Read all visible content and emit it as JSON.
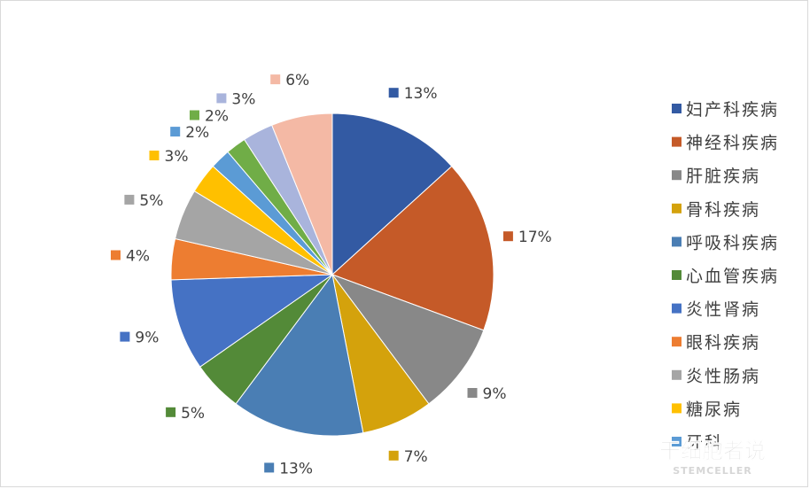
{
  "chart_data": {
    "type": "pie",
    "categories": [
      "妇产科疾病",
      "神经科疾病",
      "肝脏疾病",
      "骨科疾病",
      "呼吸科疾病",
      "心血管疾病",
      "炎性肾病",
      "眼科疾病",
      "炎性肠病",
      "糖尿病",
      "牙科",
      "",
      "",
      ""
    ],
    "values": [
      13,
      17,
      9,
      7,
      13,
      5,
      9,
      4,
      5,
      3,
      2,
      2,
      3,
      6
    ],
    "labels": [
      "13%",
      "17%",
      "9%",
      "7%",
      "13%",
      "5%",
      "9%",
      "4%",
      "5%",
      "3%",
      "2%",
      "2%",
      "3%",
      "6%"
    ],
    "colors": [
      "#335aa3",
      "#c55a28",
      "#888888",
      "#d4a20c",
      "#4a7eb4",
      "#538a38",
      "#4572c4",
      "#ed7d31",
      "#a5a5a5",
      "#ffc000",
      "#5b9bd5",
      "#70ad47",
      "#a9b4dc",
      "#f4b9a5"
    ],
    "legend_position": "right",
    "legend_count": 11
  },
  "watermark": {
    "line1": "干细胞者说",
    "line2": "STEMCELLER"
  }
}
